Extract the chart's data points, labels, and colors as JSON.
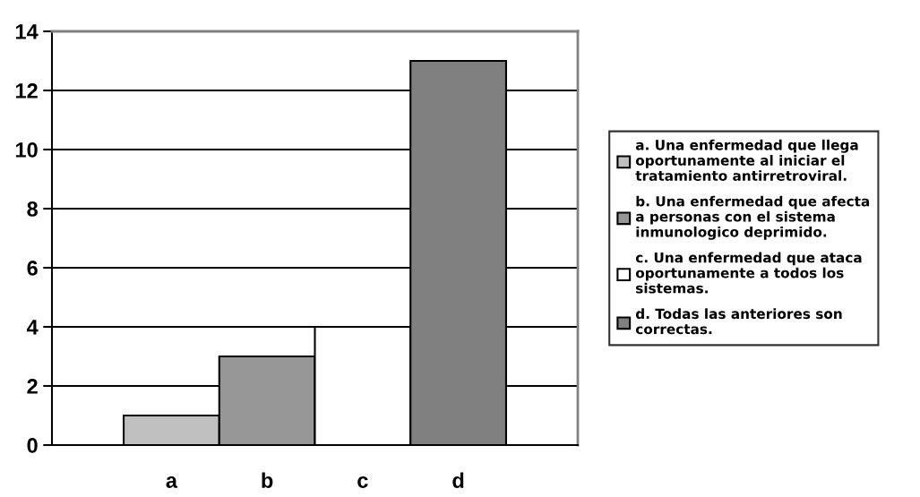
{
  "chart_data": {
    "type": "bar",
    "categories": [
      "a",
      "b",
      "c",
      "d"
    ],
    "series": [
      {
        "name": "a. Una enfermedad que llega\noportunamente al iniciar el\ntratamiento antirretroviral.",
        "color": "#c0c0c0",
        "values": [
          1,
          null,
          null,
          null
        ]
      },
      {
        "name": "b. Una enfermedad que afecta\na personas con el sistema\ninmunologico deprimido.",
        "color": "#969696",
        "values": [
          null,
          3,
          null,
          null
        ]
      },
      {
        "name": "c. Una enfermedad que ataca\noportunamente a todos los\nsistemas.",
        "color": "#ffffff",
        "values": [
          null,
          null,
          4,
          null
        ]
      },
      {
        "name": "d. Todas las anteriores son\ncorrectas.",
        "color": "#808080",
        "values": [
          null,
          null,
          null,
          13
        ]
      }
    ],
    "stacked": true,
    "ylim": [
      0,
      14
    ],
    "yticks": [
      0,
      2,
      4,
      6,
      8,
      10,
      12,
      14
    ],
    "grid": "y",
    "legend": "right"
  }
}
